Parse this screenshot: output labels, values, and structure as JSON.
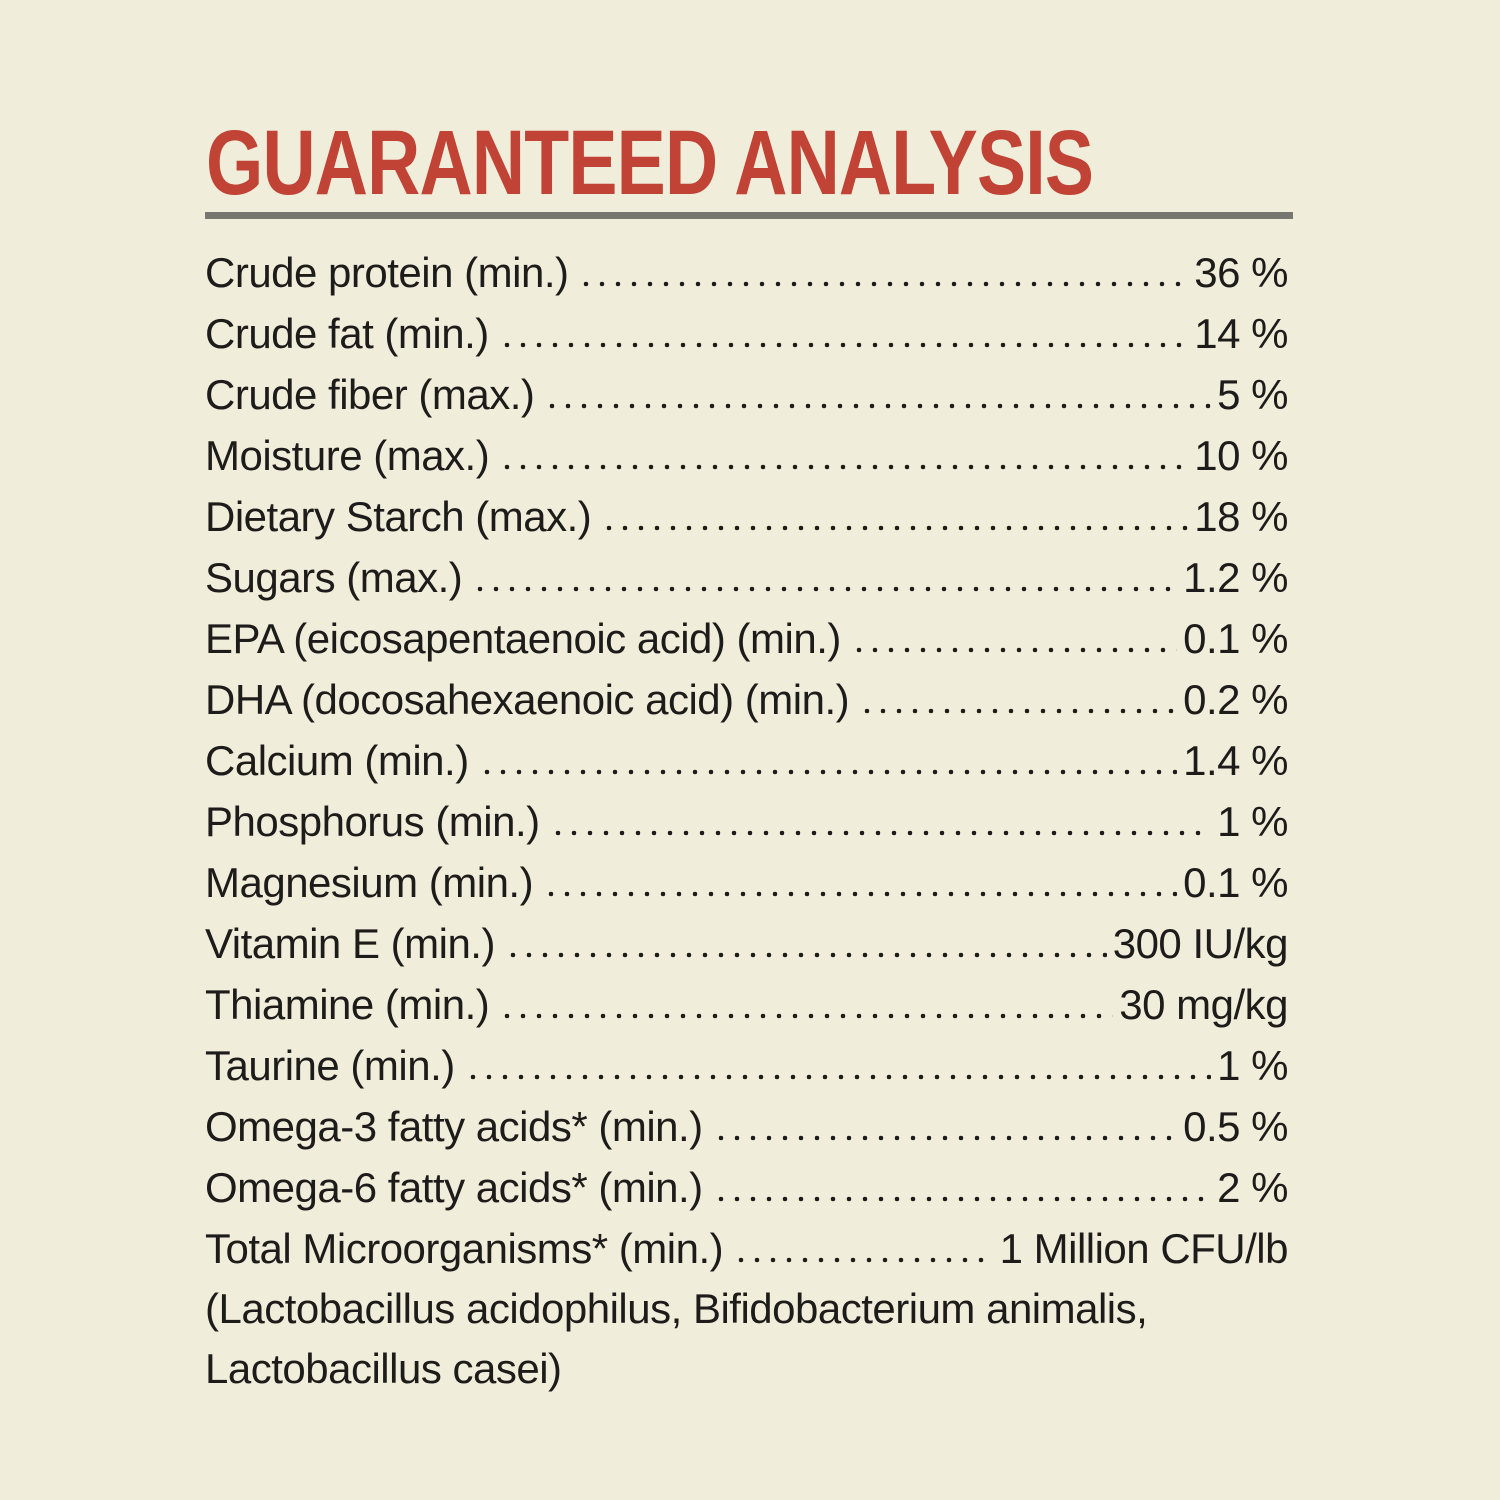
{
  "page": {
    "background_color": "#f0edda",
    "accent_color": "#c04336",
    "text_color": "#1e1c1a",
    "rule_color": "#787670"
  },
  "header": {
    "title": "GUARANTEED ANALYSIS"
  },
  "analysis": {
    "rows": [
      {
        "label": "Crude protein (min.)",
        "value": "36 %"
      },
      {
        "label": "Crude fat (min.)",
        "value": "14 %"
      },
      {
        "label": "Crude fiber (max.)",
        "value": "5 %"
      },
      {
        "label": "Moisture (max.)",
        "value": "10 %"
      },
      {
        "label": "Dietary Starch (max.)",
        "value": "18 %"
      },
      {
        "label": "Sugars (max.)",
        "value": "1.2 %"
      },
      {
        "label": "EPA (eicosapentaenoic acid) (min.)",
        "value": "0.1 %"
      },
      {
        "label": "DHA (docosahexaenoic acid) (min.)",
        "value": "0.2 %"
      },
      {
        "label": "Calcium (min.)",
        "value": "1.4 %"
      },
      {
        "label": "Phosphorus (min.)",
        "value": "1 %"
      },
      {
        "label": "Magnesium (min.)",
        "value": "0.1 %"
      },
      {
        "label": "Vitamin E (min.)",
        "value": "300 IU/kg"
      },
      {
        "label": "Thiamine (min.)",
        "value": "30 mg/kg"
      },
      {
        "label": "Taurine (min.)",
        "value": "1 %"
      },
      {
        "label": "Omega-3 fatty acids* (min.)",
        "value": "0.5 %"
      },
      {
        "label": "Omega-6 fatty acids* (min.)",
        "value": "2 %"
      },
      {
        "label": "Total Microorganisms* (min.)",
        "value": "1 Million CFU/lb"
      }
    ],
    "footnote_lines": [
      "(Lactobacillus acidophilus, Bifidobacterium animalis,",
      "Lactobacillus casei)"
    ]
  }
}
